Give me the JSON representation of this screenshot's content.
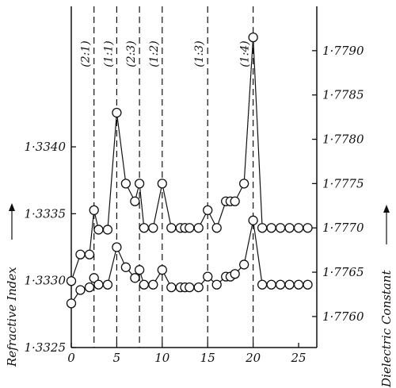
{
  "chart_data": {
    "type": "line",
    "title": "",
    "x_ticks": [
      "0",
      "5",
      "10",
      "15",
      "20",
      "25"
    ],
    "x_ticks_num": [
      0,
      5,
      10,
      15,
      20,
      25
    ],
    "xlim": [
      0,
      27
    ],
    "left_axis": {
      "label": "Refractive Index",
      "ylim": [
        1.3325,
        1.33505
      ],
      "ticks": [
        "1·3325",
        "1·3330",
        "1·3335",
        "1·3340"
      ],
      "ticks_num": [
        1.3325,
        1.333,
        1.3335,
        1.334
      ]
    },
    "right_axis": {
      "label": "Dielectric Constant",
      "ylim": [
        1.77565,
        1.7795
      ],
      "ticks": [
        "1·7760",
        "1·7765",
        "1·7770",
        "1·7775",
        "1·7780",
        "1·7785",
        "1·7790"
      ],
      "ticks_num": [
        1.776,
        1.7765,
        1.777,
        1.7775,
        1.778,
        1.7785,
        1.779
      ]
    },
    "vertical_lines": [
      {
        "x": 2.5,
        "label": "(2:1)"
      },
      {
        "x": 5,
        "label": "(1:1)"
      },
      {
        "x": 7.5,
        "label": "(2:3)"
      },
      {
        "x": 10,
        "label": "(1:2)"
      },
      {
        "x": 15,
        "label": "(1:3)"
      },
      {
        "x": 20,
        "label": "(1:4)"
      }
    ],
    "series": [
      {
        "axis": "right",
        "x": [
          0,
          1,
          2,
          2.5,
          3,
          4,
          5,
          6,
          7,
          7.5,
          8,
          9,
          10,
          11,
          12,
          12.5,
          13,
          14,
          15,
          16,
          17,
          17.5,
          18,
          19,
          20,
          21,
          22,
          23,
          24,
          25,
          26
        ],
        "y": [
          1.7764,
          1.7767,
          1.7767,
          1.7772,
          1.77698,
          1.77698,
          1.7783,
          1.7775,
          1.7773,
          1.7775,
          1.777,
          1.777,
          1.7775,
          1.777,
          1.777,
          1.777,
          1.777,
          1.777,
          1.7772,
          1.777,
          1.7773,
          1.7773,
          1.7773,
          1.7775,
          1.77915,
          1.777,
          1.777,
          1.777,
          1.777,
          1.777,
          1.777
        ]
      },
      {
        "axis": "left",
        "x": [
          0,
          1,
          2,
          2.5,
          3,
          4,
          5,
          6,
          7,
          7.5,
          8,
          9,
          10,
          11,
          12,
          12.5,
          13,
          14,
          15,
          16,
          17,
          17.5,
          18,
          19,
          20,
          21,
          22,
          23,
          24,
          25,
          26
        ],
        "y": [
          1.33283,
          1.33293,
          1.33295,
          1.33302,
          1.33297,
          1.33297,
          1.33325,
          1.3331,
          1.33302,
          1.33308,
          1.33297,
          1.33297,
          1.33308,
          1.33295,
          1.33295,
          1.33295,
          1.33295,
          1.33295,
          1.33303,
          1.33297,
          1.33303,
          1.33303,
          1.33305,
          1.33312,
          1.33345,
          1.33297,
          1.33297,
          1.33297,
          1.33297,
          1.33297,
          1.33297
        ]
      }
    ]
  }
}
